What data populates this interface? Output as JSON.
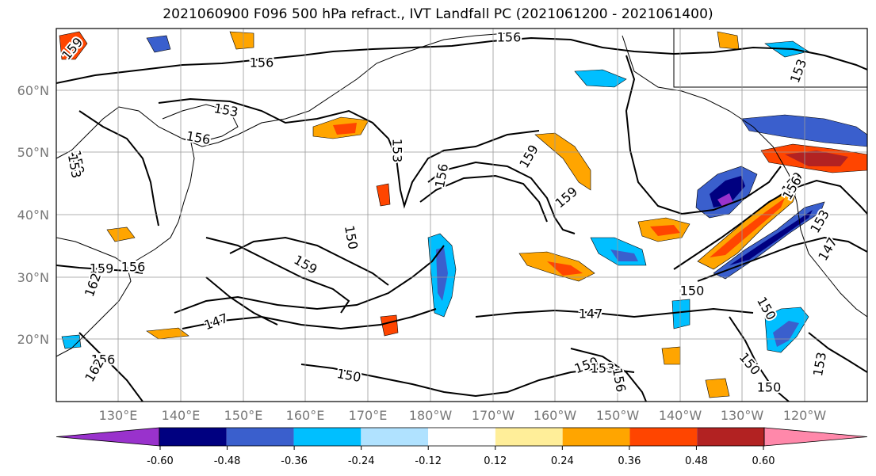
{
  "title": "2021060900 F096 500 hPa refract., IVT Landfall PC (2021061200 - 2021061400)",
  "map": {
    "lat_ticks": [
      "60°N",
      "50°N",
      "40°N",
      "30°N",
      "20°N"
    ],
    "lon_ticks": [
      "130°E",
      "140°E",
      "150°E",
      "160°E",
      "170°E",
      "180°W",
      "170°W",
      "160°W",
      "150°W",
      "140°W",
      "130°W",
      "120°W"
    ],
    "contour_labels": [
      "159",
      "156",
      "153",
      "156",
      "153",
      "159",
      "153",
      "156",
      "159",
      "159",
      "150",
      "159",
      "159",
      "156",
      "150",
      "147",
      "147",
      "150",
      "150",
      "153",
      "156",
      "150",
      "150",
      "153",
      "150",
      "153",
      "147",
      "159",
      "156",
      "162",
      "156",
      "162",
      "156",
      "153"
    ]
  },
  "colorbar": {
    "labels": [
      "-0.60",
      "-0.48",
      "-0.36",
      "-0.24",
      "-0.12",
      "0.12",
      "0.24",
      "0.36",
      "0.48",
      "0.60"
    ],
    "colors": [
      "#9932cc",
      "#000080",
      "#3a5fcd",
      "#00bfff",
      "#b0e2ff",
      "#ffffff",
      "#ffee99",
      "#ffa500",
      "#ff4500",
      "#b22222",
      "#ff88aa"
    ]
  }
}
